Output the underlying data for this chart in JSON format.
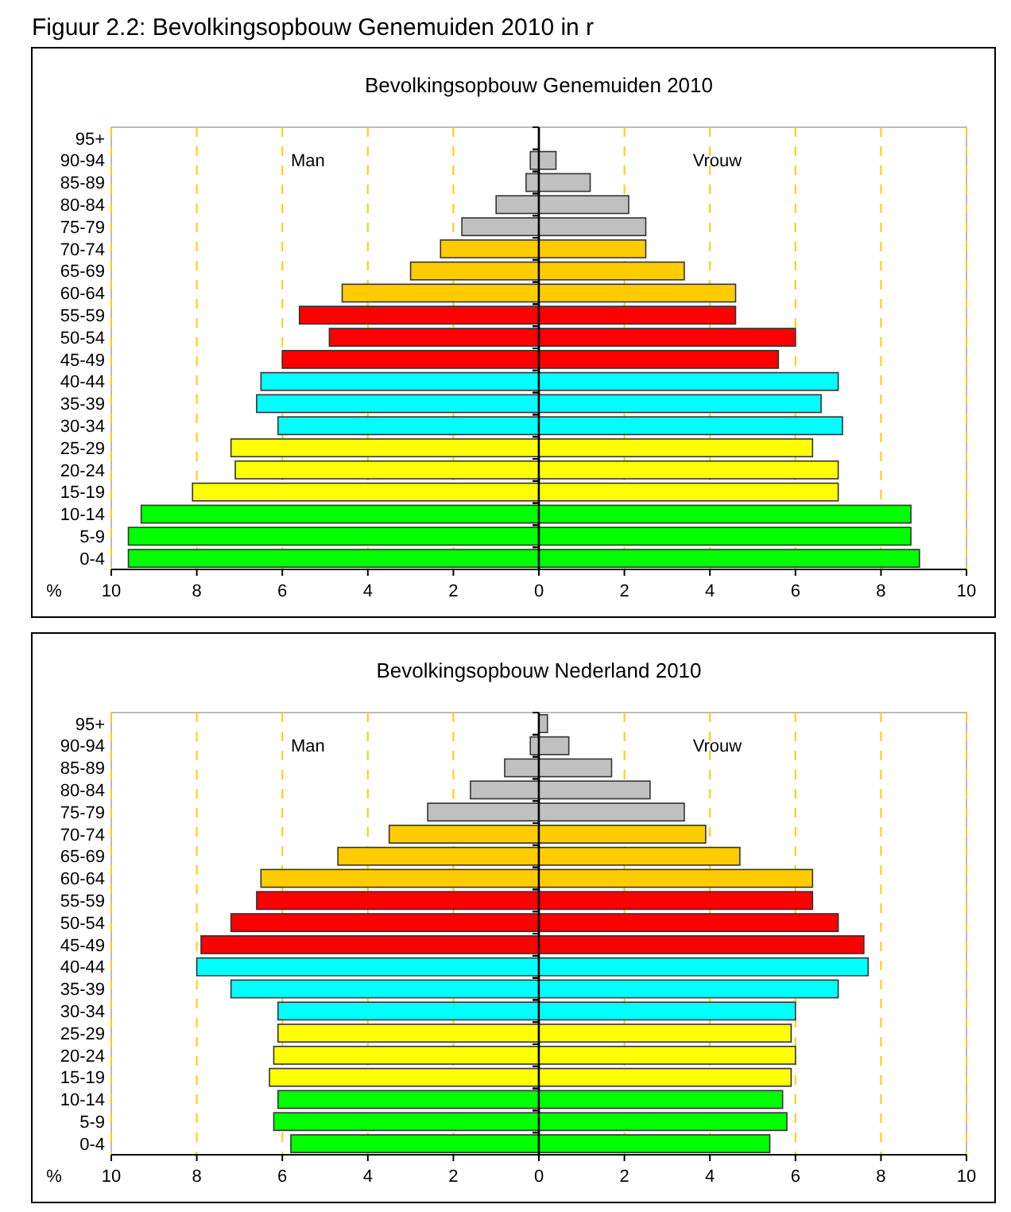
{
  "chart_data": [
    {
      "type": "bar",
      "orientation": "horizontal",
      "title": "Bevolkingsopbouw Genemuiden 2010",
      "annotations": [
        "Figuur 2.2: Bevolkingsopbouw Genemuiden 2010 in r"
      ],
      "xlabel": "%",
      "categories": [
        "95+",
        "90-94",
        "85-89",
        "80-84",
        "75-79",
        "70-74",
        "65-69",
        "60-64",
        "55-59",
        "50-54",
        "45-49",
        "40-44",
        "35-39",
        "30-34",
        "25-29",
        "20-24",
        "15-19",
        "10-14",
        "5-9",
        "0-4"
      ],
      "series": [
        {
          "name": "Man",
          "colors": [
            "#c0c0c0",
            "#c0c0c0",
            "#c0c0c0",
            "#c0c0c0",
            "#c0c0c0",
            "#ffcc00",
            "#ffcc00",
            "#ffcc00",
            "#ff0000",
            "#ff0000",
            "#ff0000",
            "#00ffff",
            "#00ffff",
            "#00ffff",
            "#ffff00",
            "#ffff00",
            "#ffff00",
            "#00ff00",
            "#00ff00",
            "#00ff00"
          ],
          "values": [
            0,
            0.2,
            0.3,
            1.0,
            1.8,
            2.3,
            3.0,
            4.6,
            5.6,
            4.9,
            6.0,
            6.5,
            6.6,
            6.1,
            7.2,
            7.1,
            8.1,
            9.3,
            9.6,
            9.6
          ]
        }
      ],
      "xlim": [
        10,
        0
      ],
      "xticks": [
        10,
        8,
        6,
        4,
        2
      ],
      "grid": "x",
      "legend": false
    },
    {
      "type": "bar",
      "orientation": "horizontal",
      "categories": [
        null,
        null,
        null,
        null,
        null,
        null,
        null,
        null,
        null,
        null,
        null,
        null,
        null,
        null,
        null,
        null,
        null,
        null,
        null,
        null
      ],
      "series": [
        {
          "name": "Vrouw",
          "colors": [
            "#c0c0c0",
            "#c0c0c0",
            "#c0c0c0",
            "#c0c0c0",
            "#c0c0c0",
            "#ffcc00",
            "#ffcc00",
            "#ffcc00",
            "#ff0000",
            "#ff0000",
            "#ff0000",
            "#00ffff",
            "#00ffff",
            "#00ffff",
            "#ffff00",
            "#ffff00",
            "#ffff00",
            "#00ff00",
            "#00ff00",
            "#00ff00"
          ],
          "values": [
            0,
            0.4,
            1.2,
            2.1,
            2.5,
            2.5,
            3.4,
            4.6,
            4.6,
            6.0,
            5.6,
            7.0,
            6.6,
            7.1,
            6.4,
            7.0,
            7.0,
            8.7,
            8.7,
            8.9
          ]
        }
      ],
      "xlim": [
        0,
        10
      ],
      "xticks": [
        0,
        2,
        4,
        6,
        8,
        10
      ],
      "grid": "x",
      "legend": false,
      "tick_labels": "x"
    },
    {
      "type": "bar",
      "orientation": "horizontal",
      "title": "Bevolkingsopbouw Nederland 2010",
      "xlabel": "%",
      "categories": [
        "95+",
        "90-94",
        "85-89",
        "80-84",
        "75-79",
        "70-74",
        "65-69",
        "60-64",
        "55-59",
        "50-54",
        "45-49",
        "40-44",
        "35-39",
        "30-34",
        "25-29",
        "20-24",
        "15-19",
        "10-14",
        "5-9",
        "0-4"
      ],
      "series": [
        {
          "name": "Man",
          "colors": [
            null,
            "#c0c0c0",
            "#c0c0c0",
            "#c0c0c0",
            "#c0c0c0",
            "#ffcc00",
            "#ffcc00",
            "#ffcc00",
            "#ff0000",
            "#ff0000",
            "#ff0000",
            "#00ffff",
            "#00ffff",
            "#00ffff",
            "#ffff00",
            "#ffff00",
            "#ffff00",
            "#00ff00",
            "#00ff00",
            "#00ff00"
          ],
          "values": [
            null,
            0.2,
            0.8,
            1.6,
            2.6,
            3.5,
            4.7,
            6.5,
            6.6,
            7.2,
            7.9,
            8.0,
            7.2,
            6.1,
            6.1,
            6.2,
            6.3,
            6.1,
            6.2,
            5.8
          ]
        }
      ],
      "xlim": [
        10,
        0
      ],
      "xticks": [
        10,
        8,
        6,
        4,
        2
      ],
      "grid": "x",
      "legend": false
    },
    {
      "type": "bar",
      "orientation": "horizontal",
      "categories": [
        null,
        null,
        null,
        null,
        null,
        null,
        null,
        null,
        null,
        null,
        null,
        null,
        null,
        null,
        null,
        null,
        null,
        null,
        null,
        null
      ],
      "series": [
        {
          "name": "Vrouw",
          "colors": [
            "#c0c0c0",
            "#c0c0c0",
            "#c0c0c0",
            "#c0c0c0",
            "#c0c0c0",
            "#ffcc00",
            "#ffcc00",
            "#ffcc00",
            "#ff0000",
            "#ff0000",
            "#ff0000",
            "#00ffff",
            "#00ffff",
            "#00ffff",
            "#ffff00",
            "#ffff00",
            "#ffff00",
            "#00ff00",
            "#00ff00",
            "#00ff00"
          ],
          "values": [
            0.2,
            0.7,
            1.7,
            2.6,
            3.4,
            3.9,
            4.7,
            6.4,
            6.4,
            7.0,
            7.6,
            7.7,
            7.0,
            6.0,
            5.9,
            6.0,
            5.9,
            5.7,
            5.8,
            5.4
          ]
        }
      ],
      "xlim": [
        0,
        10
      ],
      "xticks": [
        0,
        2,
        4,
        6,
        8,
        10
      ],
      "grid": "x",
      "legend": false,
      "tick_labels": "x"
    }
  ]
}
